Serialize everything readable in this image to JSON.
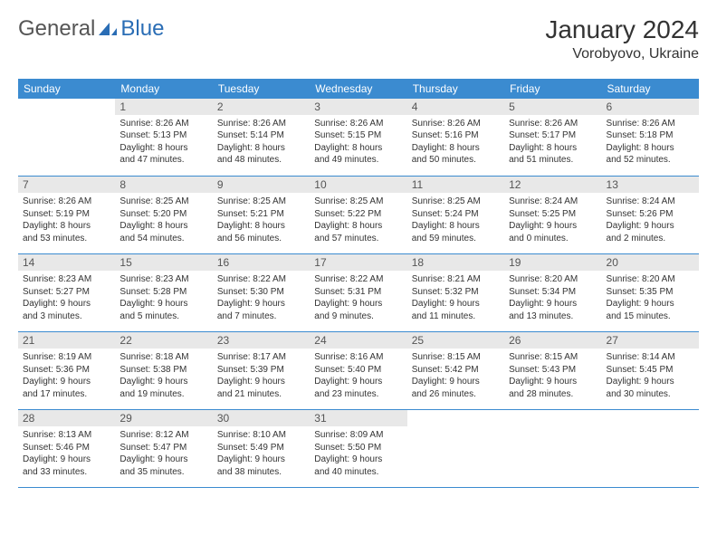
{
  "logo": {
    "text1": "General",
    "text2": "Blue"
  },
  "title": "January 2024",
  "location": "Vorobyovo, Ukraine",
  "colors": {
    "header_bg": "#3b8bd0",
    "header_fg": "#ffffff",
    "daynum_bg": "#e8e8e8",
    "border": "#3b8bd0",
    "logo_gray": "#555555",
    "logo_blue": "#2a6db5"
  },
  "weekdays": [
    "Sunday",
    "Monday",
    "Tuesday",
    "Wednesday",
    "Thursday",
    "Friday",
    "Saturday"
  ],
  "weeks": [
    [
      {
        "n": "",
        "l1": "",
        "l2": "",
        "l3": "",
        "l4": "",
        "empty": true
      },
      {
        "n": "1",
        "l1": "Sunrise: 8:26 AM",
        "l2": "Sunset: 5:13 PM",
        "l3": "Daylight: 8 hours",
        "l4": "and 47 minutes."
      },
      {
        "n": "2",
        "l1": "Sunrise: 8:26 AM",
        "l2": "Sunset: 5:14 PM",
        "l3": "Daylight: 8 hours",
        "l4": "and 48 minutes."
      },
      {
        "n": "3",
        "l1": "Sunrise: 8:26 AM",
        "l2": "Sunset: 5:15 PM",
        "l3": "Daylight: 8 hours",
        "l4": "and 49 minutes."
      },
      {
        "n": "4",
        "l1": "Sunrise: 8:26 AM",
        "l2": "Sunset: 5:16 PM",
        "l3": "Daylight: 8 hours",
        "l4": "and 50 minutes."
      },
      {
        "n": "5",
        "l1": "Sunrise: 8:26 AM",
        "l2": "Sunset: 5:17 PM",
        "l3": "Daylight: 8 hours",
        "l4": "and 51 minutes."
      },
      {
        "n": "6",
        "l1": "Sunrise: 8:26 AM",
        "l2": "Sunset: 5:18 PM",
        "l3": "Daylight: 8 hours",
        "l4": "and 52 minutes."
      }
    ],
    [
      {
        "n": "7",
        "l1": "Sunrise: 8:26 AM",
        "l2": "Sunset: 5:19 PM",
        "l3": "Daylight: 8 hours",
        "l4": "and 53 minutes."
      },
      {
        "n": "8",
        "l1": "Sunrise: 8:25 AM",
        "l2": "Sunset: 5:20 PM",
        "l3": "Daylight: 8 hours",
        "l4": "and 54 minutes."
      },
      {
        "n": "9",
        "l1": "Sunrise: 8:25 AM",
        "l2": "Sunset: 5:21 PM",
        "l3": "Daylight: 8 hours",
        "l4": "and 56 minutes."
      },
      {
        "n": "10",
        "l1": "Sunrise: 8:25 AM",
        "l2": "Sunset: 5:22 PM",
        "l3": "Daylight: 8 hours",
        "l4": "and 57 minutes."
      },
      {
        "n": "11",
        "l1": "Sunrise: 8:25 AM",
        "l2": "Sunset: 5:24 PM",
        "l3": "Daylight: 8 hours",
        "l4": "and 59 minutes."
      },
      {
        "n": "12",
        "l1": "Sunrise: 8:24 AM",
        "l2": "Sunset: 5:25 PM",
        "l3": "Daylight: 9 hours",
        "l4": "and 0 minutes."
      },
      {
        "n": "13",
        "l1": "Sunrise: 8:24 AM",
        "l2": "Sunset: 5:26 PM",
        "l3": "Daylight: 9 hours",
        "l4": "and 2 minutes."
      }
    ],
    [
      {
        "n": "14",
        "l1": "Sunrise: 8:23 AM",
        "l2": "Sunset: 5:27 PM",
        "l3": "Daylight: 9 hours",
        "l4": "and 3 minutes."
      },
      {
        "n": "15",
        "l1": "Sunrise: 8:23 AM",
        "l2": "Sunset: 5:28 PM",
        "l3": "Daylight: 9 hours",
        "l4": "and 5 minutes."
      },
      {
        "n": "16",
        "l1": "Sunrise: 8:22 AM",
        "l2": "Sunset: 5:30 PM",
        "l3": "Daylight: 9 hours",
        "l4": "and 7 minutes."
      },
      {
        "n": "17",
        "l1": "Sunrise: 8:22 AM",
        "l2": "Sunset: 5:31 PM",
        "l3": "Daylight: 9 hours",
        "l4": "and 9 minutes."
      },
      {
        "n": "18",
        "l1": "Sunrise: 8:21 AM",
        "l2": "Sunset: 5:32 PM",
        "l3": "Daylight: 9 hours",
        "l4": "and 11 minutes."
      },
      {
        "n": "19",
        "l1": "Sunrise: 8:20 AM",
        "l2": "Sunset: 5:34 PM",
        "l3": "Daylight: 9 hours",
        "l4": "and 13 minutes."
      },
      {
        "n": "20",
        "l1": "Sunrise: 8:20 AM",
        "l2": "Sunset: 5:35 PM",
        "l3": "Daylight: 9 hours",
        "l4": "and 15 minutes."
      }
    ],
    [
      {
        "n": "21",
        "l1": "Sunrise: 8:19 AM",
        "l2": "Sunset: 5:36 PM",
        "l3": "Daylight: 9 hours",
        "l4": "and 17 minutes."
      },
      {
        "n": "22",
        "l1": "Sunrise: 8:18 AM",
        "l2": "Sunset: 5:38 PM",
        "l3": "Daylight: 9 hours",
        "l4": "and 19 minutes."
      },
      {
        "n": "23",
        "l1": "Sunrise: 8:17 AM",
        "l2": "Sunset: 5:39 PM",
        "l3": "Daylight: 9 hours",
        "l4": "and 21 minutes."
      },
      {
        "n": "24",
        "l1": "Sunrise: 8:16 AM",
        "l2": "Sunset: 5:40 PM",
        "l3": "Daylight: 9 hours",
        "l4": "and 23 minutes."
      },
      {
        "n": "25",
        "l1": "Sunrise: 8:15 AM",
        "l2": "Sunset: 5:42 PM",
        "l3": "Daylight: 9 hours",
        "l4": "and 26 minutes."
      },
      {
        "n": "26",
        "l1": "Sunrise: 8:15 AM",
        "l2": "Sunset: 5:43 PM",
        "l3": "Daylight: 9 hours",
        "l4": "and 28 minutes."
      },
      {
        "n": "27",
        "l1": "Sunrise: 8:14 AM",
        "l2": "Sunset: 5:45 PM",
        "l3": "Daylight: 9 hours",
        "l4": "and 30 minutes."
      }
    ],
    [
      {
        "n": "28",
        "l1": "Sunrise: 8:13 AM",
        "l2": "Sunset: 5:46 PM",
        "l3": "Daylight: 9 hours",
        "l4": "and 33 minutes."
      },
      {
        "n": "29",
        "l1": "Sunrise: 8:12 AM",
        "l2": "Sunset: 5:47 PM",
        "l3": "Daylight: 9 hours",
        "l4": "and 35 minutes."
      },
      {
        "n": "30",
        "l1": "Sunrise: 8:10 AM",
        "l2": "Sunset: 5:49 PM",
        "l3": "Daylight: 9 hours",
        "l4": "and 38 minutes."
      },
      {
        "n": "31",
        "l1": "Sunrise: 8:09 AM",
        "l2": "Sunset: 5:50 PM",
        "l3": "Daylight: 9 hours",
        "l4": "and 40 minutes."
      },
      {
        "n": "",
        "l1": "",
        "l2": "",
        "l3": "",
        "l4": "",
        "empty": true
      },
      {
        "n": "",
        "l1": "",
        "l2": "",
        "l3": "",
        "l4": "",
        "empty": true
      },
      {
        "n": "",
        "l1": "",
        "l2": "",
        "l3": "",
        "l4": "",
        "empty": true
      }
    ]
  ]
}
